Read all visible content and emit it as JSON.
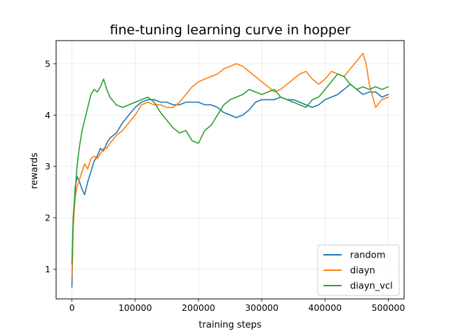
{
  "chart_data": {
    "type": "line",
    "title": "fine-tuning learning curve in hopper",
    "xlabel": "training steps",
    "ylabel": "rewards",
    "xlim": [
      -25000,
      525000
    ],
    "ylim": [
      0.42,
      5.45
    ],
    "xticks": [
      0,
      100000,
      200000,
      300000,
      400000,
      500000
    ],
    "xtick_labels": [
      "0",
      "100000",
      "200000",
      "300000",
      "400000",
      "500000"
    ],
    "yticks": [
      1,
      2,
      3,
      4,
      5
    ],
    "ytick_labels": [
      "1",
      "2",
      "3",
      "4",
      "5"
    ],
    "grid": true,
    "legend_position": "lower right",
    "series": [
      {
        "name": "random",
        "color": "#1f77b4",
        "x": [
          0,
          2000,
          5000,
          8000,
          12000,
          16000,
          20000,
          25000,
          30000,
          35000,
          40000,
          45000,
          50000,
          55000,
          60000,
          70000,
          80000,
          90000,
          100000,
          110000,
          120000,
          130000,
          140000,
          150000,
          160000,
          170000,
          180000,
          190000,
          200000,
          210000,
          220000,
          230000,
          240000,
          250000,
          260000,
          270000,
          280000,
          290000,
          300000,
          310000,
          320000,
          330000,
          340000,
          350000,
          360000,
          370000,
          380000,
          390000,
          400000,
          410000,
          420000,
          430000,
          440000,
          450000,
          460000,
          470000,
          480000,
          490000,
          500000
        ],
        "values": [
          0.65,
          1.9,
          2.6,
          2.8,
          2.7,
          2.55,
          2.45,
          2.7,
          2.9,
          3.1,
          3.2,
          3.35,
          3.3,
          3.45,
          3.55,
          3.65,
          3.85,
          4.0,
          4.15,
          4.25,
          4.3,
          4.3,
          4.25,
          4.25,
          4.2,
          4.2,
          4.25,
          4.25,
          4.25,
          4.2,
          4.2,
          4.15,
          4.05,
          4.0,
          3.95,
          4.0,
          4.1,
          4.25,
          4.3,
          4.3,
          4.3,
          4.35,
          4.3,
          4.3,
          4.25,
          4.2,
          4.15,
          4.2,
          4.3,
          4.35,
          4.4,
          4.5,
          4.6,
          4.5,
          4.4,
          4.45,
          4.45,
          4.35,
          4.4
        ]
      },
      {
        "name": "diayn",
        "color": "#ff7f0e",
        "x": [
          0,
          2000,
          5000,
          8000,
          12000,
          16000,
          20000,
          25000,
          30000,
          35000,
          40000,
          45000,
          50000,
          55000,
          60000,
          70000,
          80000,
          90000,
          100000,
          110000,
          120000,
          130000,
          140000,
          150000,
          160000,
          170000,
          180000,
          190000,
          200000,
          210000,
          220000,
          230000,
          240000,
          250000,
          260000,
          270000,
          280000,
          290000,
          300000,
          310000,
          320000,
          330000,
          340000,
          350000,
          360000,
          370000,
          380000,
          390000,
          400000,
          410000,
          420000,
          430000,
          440000,
          450000,
          460000,
          465000,
          470000,
          480000,
          490000,
          500000
        ],
        "values": [
          0.85,
          1.8,
          2.4,
          2.6,
          2.75,
          2.9,
          3.05,
          2.95,
          3.15,
          3.2,
          3.15,
          3.25,
          3.35,
          3.35,
          3.45,
          3.6,
          3.7,
          3.85,
          4.0,
          4.2,
          4.25,
          4.2,
          4.2,
          4.15,
          4.15,
          4.25,
          4.4,
          4.55,
          4.65,
          4.7,
          4.75,
          4.8,
          4.9,
          4.95,
          5.0,
          4.95,
          4.85,
          4.75,
          4.65,
          4.55,
          4.45,
          4.5,
          4.6,
          4.7,
          4.8,
          4.85,
          4.7,
          4.6,
          4.7,
          4.85,
          4.8,
          4.75,
          4.9,
          5.05,
          5.2,
          5.0,
          4.6,
          4.15,
          4.3,
          4.35
        ]
      },
      {
        "name": "diayn_vcl",
        "color": "#2ca02c",
        "x": [
          0,
          2000,
          5000,
          8000,
          12000,
          16000,
          20000,
          25000,
          30000,
          35000,
          40000,
          45000,
          50000,
          55000,
          60000,
          70000,
          80000,
          90000,
          100000,
          110000,
          120000,
          130000,
          140000,
          150000,
          160000,
          170000,
          180000,
          190000,
          200000,
          210000,
          220000,
          230000,
          240000,
          250000,
          260000,
          270000,
          280000,
          290000,
          300000,
          310000,
          320000,
          330000,
          340000,
          350000,
          360000,
          370000,
          380000,
          390000,
          400000,
          410000,
          420000,
          430000,
          440000,
          450000,
          460000,
          470000,
          480000,
          490000,
          500000
        ],
        "values": [
          1.1,
          2.0,
          2.5,
          3.0,
          3.4,
          3.7,
          3.9,
          4.15,
          4.4,
          4.5,
          4.45,
          4.55,
          4.7,
          4.5,
          4.35,
          4.2,
          4.15,
          4.2,
          4.25,
          4.3,
          4.35,
          4.25,
          4.05,
          3.9,
          3.75,
          3.65,
          3.7,
          3.5,
          3.45,
          3.7,
          3.8,
          4.0,
          4.2,
          4.3,
          4.35,
          4.4,
          4.5,
          4.45,
          4.4,
          4.45,
          4.5,
          4.35,
          4.3,
          4.25,
          4.2,
          4.15,
          4.3,
          4.35,
          4.5,
          4.65,
          4.8,
          4.75,
          4.6,
          4.5,
          4.55,
          4.5,
          4.55,
          4.5,
          4.55
        ]
      }
    ]
  }
}
